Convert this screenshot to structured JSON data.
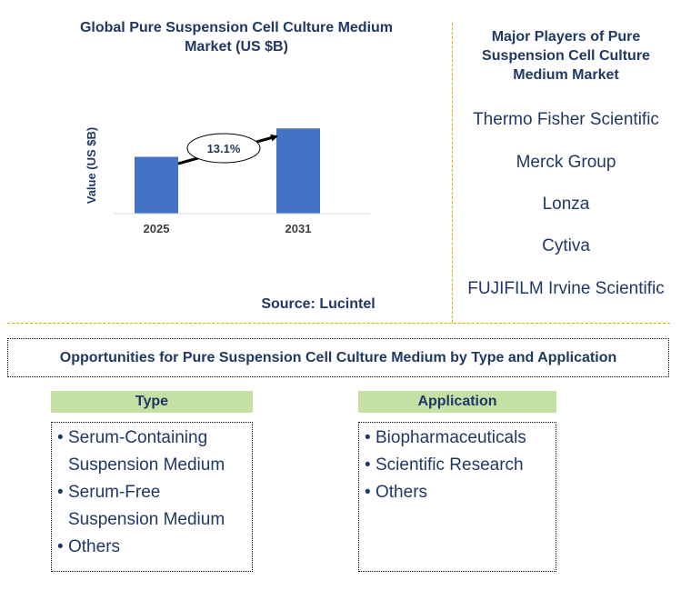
{
  "chart": {
    "title": "Global Pure Suspension Cell Culture Medium Market (US $B)",
    "source": "Source: Lucintel"
  },
  "chart_data": {
    "type": "bar",
    "title": "Global Pure Suspension Cell Culture Medium Market (US $B)",
    "categories": [
      "2025",
      "2031"
    ],
    "values": [
      1.0,
      1.5
    ],
    "ylabel": "Value (US $B)",
    "xlabel": "",
    "ylim": [
      0,
      1.6
    ],
    "grid": false,
    "annotation": "13.1%",
    "bar_color": "#4472c4"
  },
  "players": {
    "title": "Major Players of Pure Suspension Cell Culture Medium Market",
    "items": [
      "Thermo Fisher Scientific",
      "Merck Group",
      "Lonza",
      "Cytiva",
      "FUJIFILM Irvine Scientific"
    ]
  },
  "opportunities": {
    "title": "Opportunities for Pure Suspension Cell Culture Medium by Type and Application",
    "type": {
      "heading": "Type",
      "items": [
        "Serum-Containing Suspension Medium",
        "Serum-Free Suspension Medium",
        "Others"
      ]
    },
    "application": {
      "heading": "Application",
      "items": [
        "Biopharmaceuticals",
        "Scientific Research",
        "Others"
      ]
    }
  },
  "colors": {
    "text": "#1f3864",
    "bar": "#4472c4",
    "segment_header": "#c5e0a5",
    "divider": "#d4b106"
  }
}
